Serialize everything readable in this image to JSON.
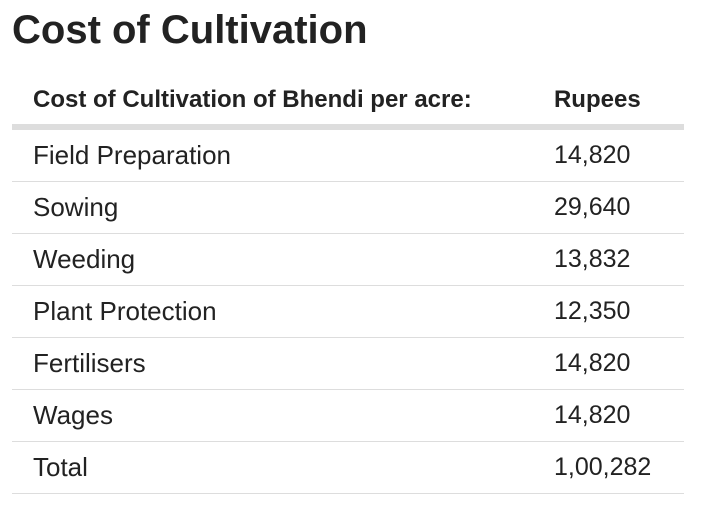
{
  "title": "Cost of Cultivation",
  "table": {
    "header": {
      "label": "Cost of Cultivation of Bhendi per acre:",
      "value": "Rupees"
    },
    "rows": [
      {
        "label": "Field Preparation",
        "value": "14,820"
      },
      {
        "label": "Sowing",
        "value": "29,640"
      },
      {
        "label": "Weeding",
        "value": "13,832"
      },
      {
        "label": "Plant Protection",
        "value": "12,350"
      },
      {
        "label": "Fertilisers",
        "value": "14,820"
      },
      {
        "label": "Wages",
        "value": "14,820"
      },
      {
        "label": "Total",
        "value": "1,00,282"
      }
    ]
  }
}
